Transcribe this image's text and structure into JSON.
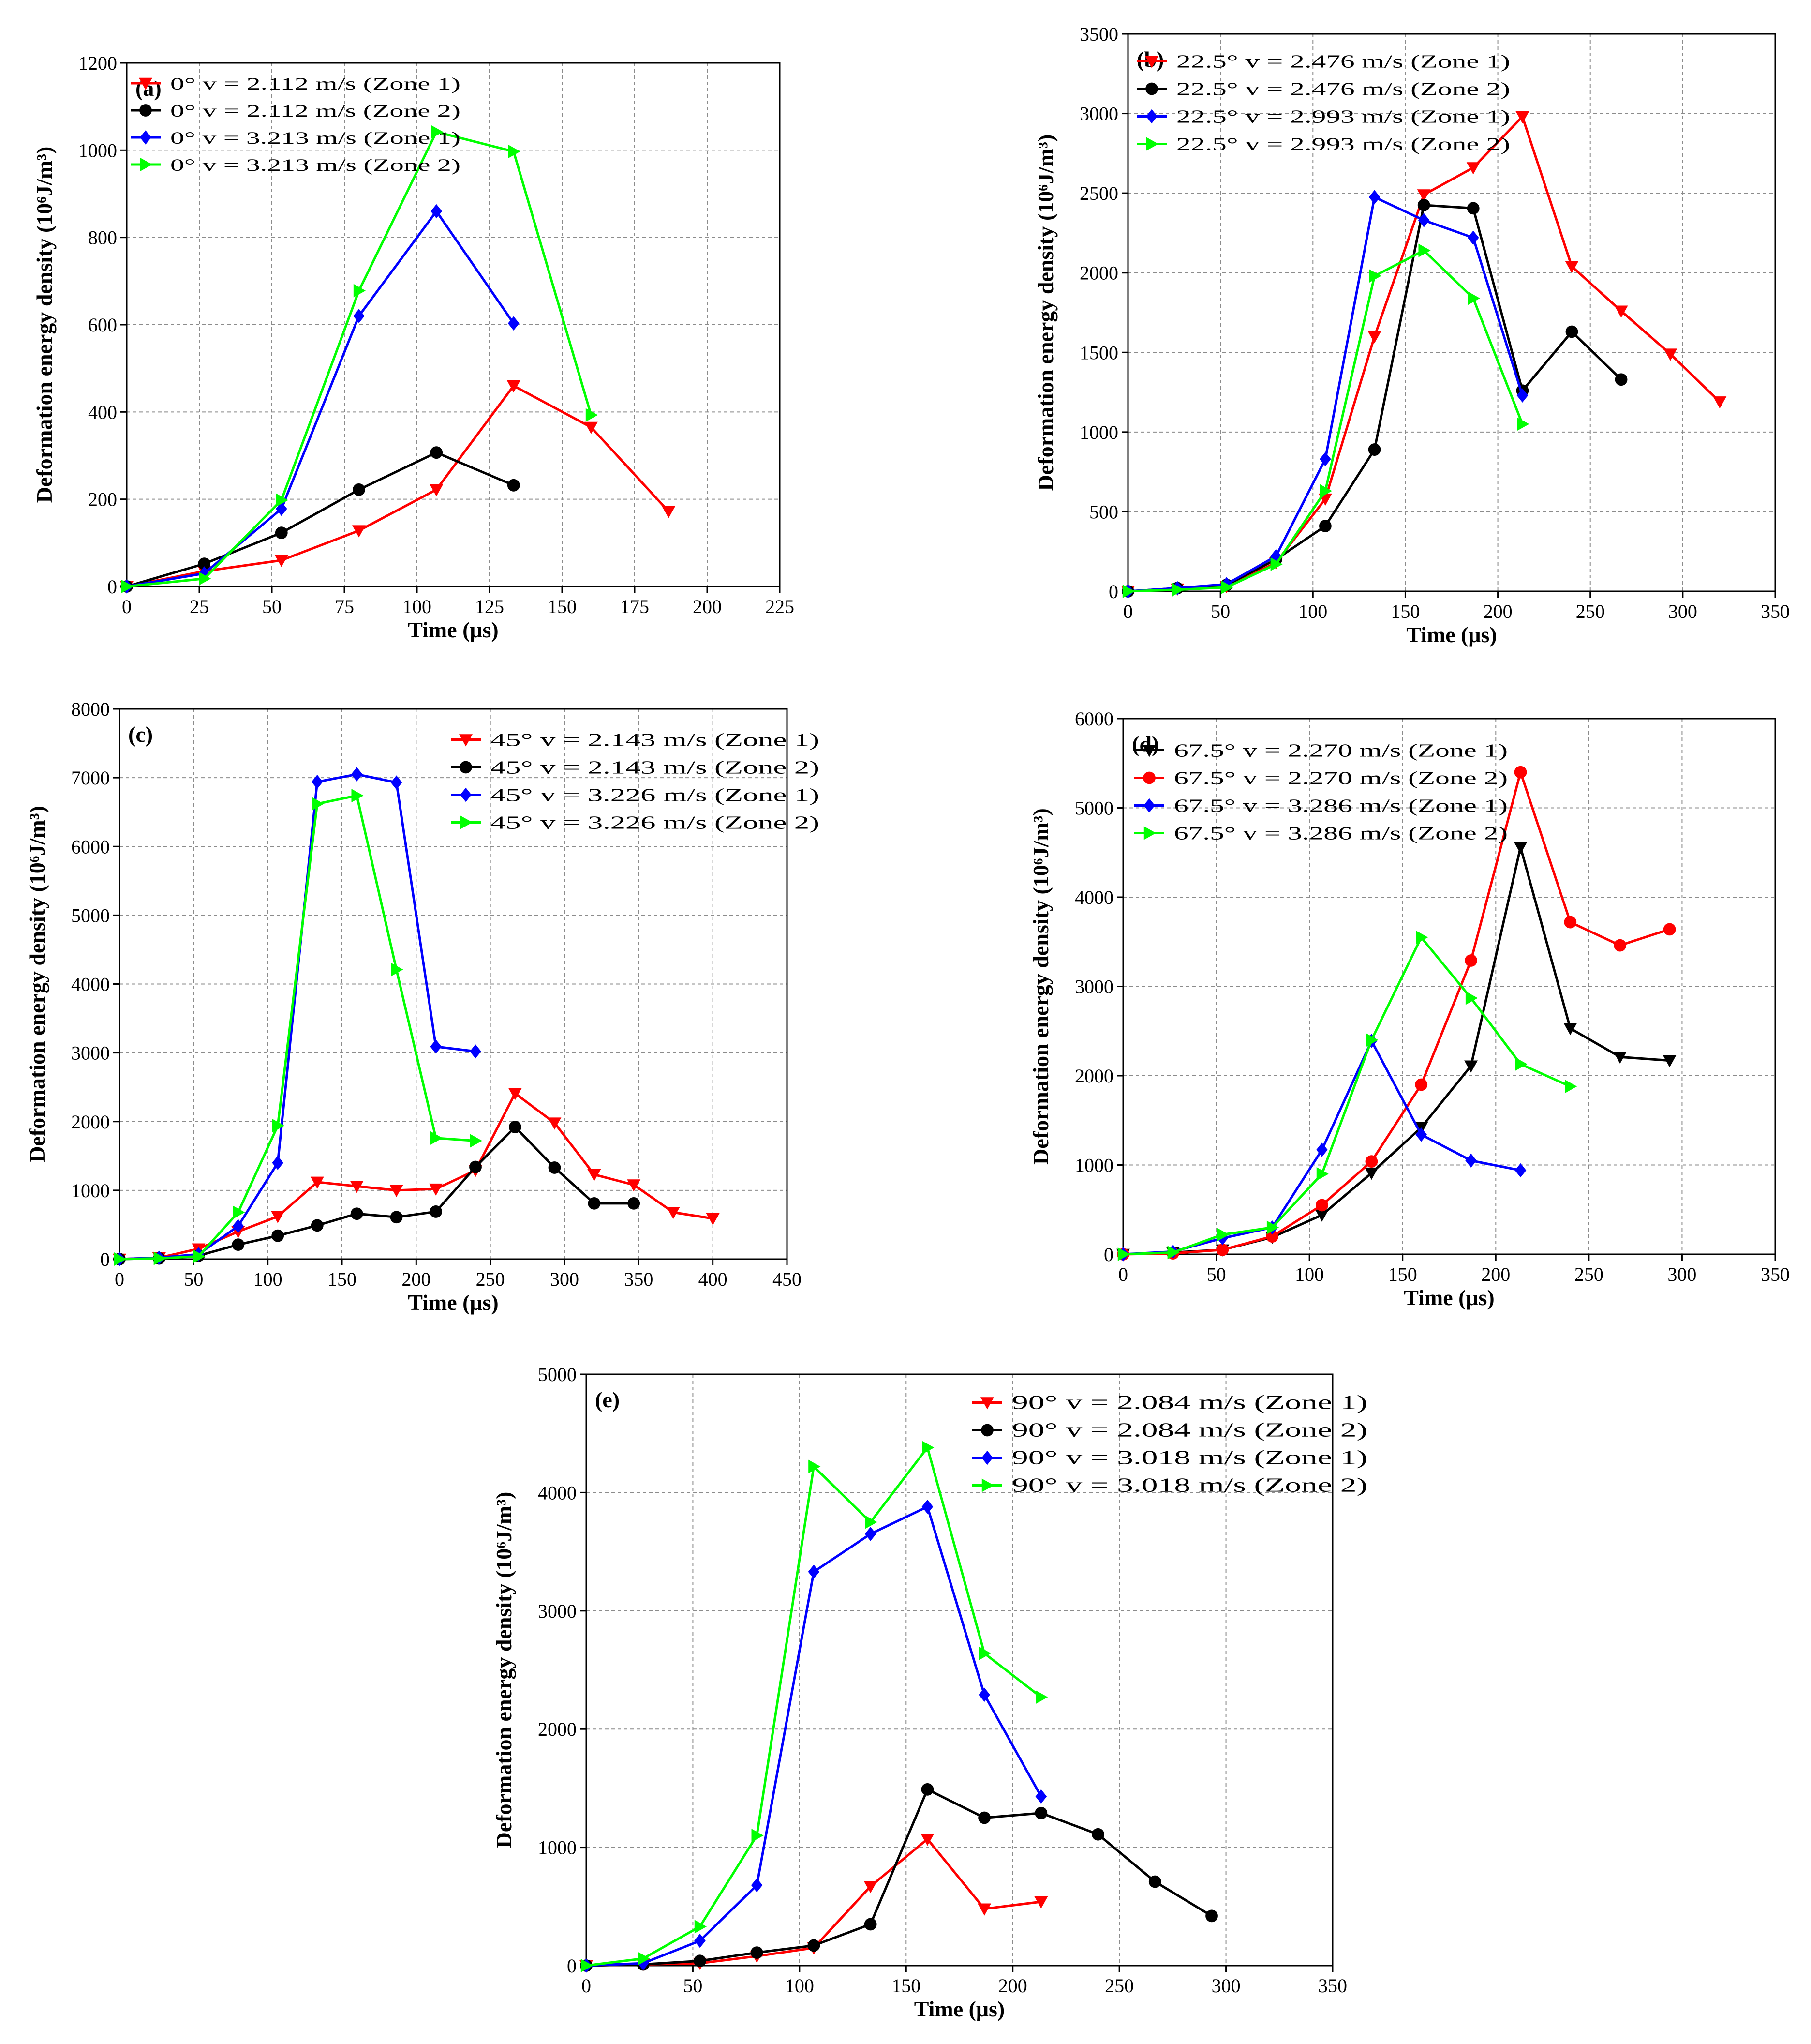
{
  "chart_data": [
    {
      "type": "line",
      "panel_label": "(a)",
      "xlabel": "Time (μs)",
      "ylabel": "Deformation energy density (10⁶J/m³)",
      "xlim": [
        0,
        225
      ],
      "ylim": [
        0,
        1200
      ],
      "xticks": [
        0,
        25,
        50,
        75,
        100,
        125,
        150,
        175,
        200,
        225
      ],
      "yticks": [
        0,
        200,
        400,
        600,
        800,
        1000,
        1200
      ],
      "legend_position": "top-left",
      "series": [
        {
          "name": "0° v = 2.112 m/s  (Zone 1)",
          "angle": "0°",
          "speed": "v = 2.112 m/s",
          "zone": "(Zone 1)",
          "color": "#ff0000",
          "marker": "triangle-down",
          "x": [
            0,
            26.7,
            53.3,
            80,
            106.7,
            133.3,
            160,
            186.7
          ],
          "y": [
            0,
            35,
            60,
            128,
            222,
            460,
            365,
            172
          ]
        },
        {
          "name": "0° v = 2.112 m/s  (Zone 2)",
          "angle": "0°",
          "speed": "v = 2.112 m/s",
          "zone": "(Zone 2)",
          "color": "#000000",
          "marker": "circle",
          "x": [
            0,
            26.7,
            53.3,
            80,
            106.7,
            133.3
          ],
          "y": [
            0,
            52,
            123,
            222,
            307,
            232
          ]
        },
        {
          "name": "0° v = 3.213 m/s  (Zone 1)",
          "angle": "0°",
          "speed": "v = 3.213 m/s",
          "zone": "(Zone 1)",
          "color": "#0000ff",
          "marker": "diamond",
          "x": [
            0,
            26.7,
            53.3,
            80,
            106.7,
            133.3
          ],
          "y": [
            0,
            30,
            178,
            620,
            860,
            603
          ]
        },
        {
          "name": "0° v = 3.213 m/s  (Zone 2)",
          "angle": "0°",
          "speed": "v = 3.213 m/s",
          "zone": "(Zone 2)",
          "color": "#00ff00",
          "marker": "triangle-right",
          "x": [
            0,
            26.7,
            53.3,
            80,
            106.7,
            133.3,
            160
          ],
          "y": [
            0,
            18,
            198,
            678,
            1042,
            997,
            393
          ]
        }
      ]
    },
    {
      "type": "line",
      "panel_label": "(b)",
      "xlabel": "Time (μs)",
      "ylabel": "Deformation energy density (10⁶J/m³)",
      "xlim": [
        0,
        350
      ],
      "ylim": [
        0,
        3500
      ],
      "xticks": [
        0,
        50,
        100,
        150,
        200,
        250,
        300,
        350
      ],
      "yticks": [
        0,
        500,
        1000,
        1500,
        2000,
        2500,
        3000,
        3500
      ],
      "legend_position": "top-left",
      "series": [
        {
          "name": "22.5° v = 2.476 m/s  (Zone 1)",
          "angle": "22.5°",
          "speed": "v = 2.476 m/s",
          "zone": "(Zone 1)",
          "color": "#ff0000",
          "marker": "triangle-down",
          "x": [
            0,
            26.7,
            53.3,
            80,
            106.7,
            133.3,
            160,
            186.7,
            213.3,
            240,
            266.7,
            293.3,
            320
          ],
          "y": [
            0,
            15,
            30,
            180,
            580,
            1600,
            2490,
            2660,
            2980,
            2040,
            1760,
            1490,
            1190
          ]
        },
        {
          "name": "22.5° v = 2.476 m/s  (Zone 2)",
          "angle": "22.5°",
          "speed": "v = 2.476 m/s",
          "zone": "(Zone 2)",
          "color": "#000000",
          "marker": "circle",
          "x": [
            0,
            26.7,
            53.3,
            80,
            106.7,
            133.3,
            160,
            186.7,
            213.3,
            240,
            266.7
          ],
          "y": [
            0,
            20,
            40,
            200,
            410,
            890,
            2425,
            2405,
            1260,
            1630,
            1330
          ]
        },
        {
          "name": "22.5° v = 2.993 m/s  (Zone 1)",
          "angle": "22.5°",
          "speed": "v = 2.993 m/s",
          "zone": "(Zone 1)",
          "color": "#0000ff",
          "marker": "diamond",
          "x": [
            0,
            26.7,
            53.3,
            80,
            106.7,
            133.3,
            160,
            186.7,
            213.3
          ],
          "y": [
            0,
            20,
            45,
            220,
            830,
            2475,
            2330,
            2220,
            1230
          ]
        },
        {
          "name": "22.5° v = 2.993 m/s  (Zone 2)",
          "angle": "22.5°",
          "speed": "v = 2.993 m/s",
          "zone": "(Zone 2)",
          "color": "#00ff00",
          "marker": "triangle-right",
          "x": [
            0,
            26.7,
            53.3,
            80,
            106.7,
            133.3,
            160,
            186.7,
            213.3
          ],
          "y": [
            0,
            10,
            25,
            170,
            630,
            1980,
            2140,
            1840,
            1050
          ]
        }
      ]
    },
    {
      "type": "line",
      "panel_label": "(c)",
      "xlabel": "Time (μs)",
      "ylabel": "Deformation energy density (10⁶J/m³)",
      "xlim": [
        0,
        450
      ],
      "ylim": [
        0,
        8000
      ],
      "xticks": [
        0,
        50,
        100,
        150,
        200,
        250,
        300,
        350,
        400,
        450
      ],
      "yticks": [
        0,
        1000,
        2000,
        3000,
        4000,
        5000,
        6000,
        7000,
        8000
      ],
      "legend_position": "top-right",
      "series": [
        {
          "name": "45° v = 2.143 m/s  (Zone 1)",
          "angle": "45°",
          "speed": "v = 2.143 m/s",
          "zone": "(Zone 1)",
          "color": "#ff0000",
          "marker": "triangle-down",
          "x": [
            0,
            26.7,
            53.3,
            80,
            106.7,
            133.3,
            160,
            186.7,
            213.3,
            240,
            266.7,
            293.3,
            320,
            346.7,
            373.3,
            400
          ],
          "y": [
            0,
            20,
            150,
            400,
            620,
            1120,
            1060,
            1000,
            1020,
            1290,
            2410,
            1980,
            1230,
            1080,
            680,
            590
          ]
        },
        {
          "name": "45° v = 2.143 m/s  (Zone 2)",
          "angle": "45°",
          "speed": "v = 2.143 m/s",
          "zone": "(Zone 2)",
          "color": "#000000",
          "marker": "circle",
          "x": [
            0,
            26.7,
            53.3,
            80,
            106.7,
            133.3,
            160,
            186.7,
            213.3,
            240,
            266.7,
            293.3,
            320,
            346.7
          ],
          "y": [
            0,
            10,
            50,
            210,
            340,
            490,
            660,
            610,
            690,
            1340,
            1920,
            1330,
            810,
            810
          ]
        },
        {
          "name": "45° v = 3.226 m/s  (Zone 1)",
          "angle": "45°",
          "speed": "v = 3.226 m/s",
          "zone": "(Zone 1)",
          "color": "#0000ff",
          "marker": "diamond",
          "x": [
            0,
            26.7,
            53.3,
            80,
            106.7,
            133.3,
            160,
            186.7,
            213.3,
            240
          ],
          "y": [
            0,
            20,
            70,
            480,
            1400,
            6940,
            7050,
            6930,
            3090,
            3020
          ]
        },
        {
          "name": "45° v = 3.226 m/s  (Zone 2)",
          "angle": "45°",
          "speed": "v = 3.226 m/s",
          "zone": "(Zone 2)",
          "color": "#00ff00",
          "marker": "triangle-right",
          "x": [
            0,
            26.7,
            53.3,
            80,
            106.7,
            133.3,
            160,
            186.7,
            213.3,
            240
          ],
          "y": [
            0,
            10,
            40,
            680,
            1940,
            6620,
            6740,
            4210,
            1760,
            1720
          ]
        }
      ]
    },
    {
      "type": "line",
      "panel_label": "(d)",
      "xlabel": "Time (μs)",
      "ylabel": "Deformation energy density (10⁶J/m³)",
      "xlim": [
        0,
        350
      ],
      "ylim": [
        0,
        6000
      ],
      "xticks": [
        0,
        50,
        100,
        150,
        200,
        250,
        300,
        350
      ],
      "yticks": [
        0,
        1000,
        2000,
        3000,
        4000,
        5000,
        6000
      ],
      "legend_position": "top-left",
      "series": [
        {
          "name": "67.5° v = 2.270 m/s  (Zone 1)",
          "angle": "67.5°",
          "speed": "v = 2.270 m/s",
          "zone": "(Zone 1)",
          "color": "#000000",
          "marker": "triangle-down",
          "x": [
            0,
            26.7,
            53.3,
            80,
            106.7,
            133.3,
            160,
            186.7,
            213.3,
            240,
            266.7,
            293.3
          ],
          "y": [
            0,
            20,
            50,
            190,
            440,
            910,
            1420,
            2110,
            4560,
            2530,
            2210,
            2170
          ]
        },
        {
          "name": "67.5° v = 2.270 m/s  (Zone 2)",
          "angle": "67.5°",
          "speed": "v = 2.270 m/s",
          "zone": "(Zone 2)",
          "color": "#ff0000",
          "marker": "circle",
          "x": [
            0,
            26.7,
            53.3,
            80,
            106.7,
            133.3,
            160,
            186.7,
            213.3,
            240,
            266.7,
            293.3
          ],
          "y": [
            0,
            10,
            50,
            200,
            550,
            1040,
            1900,
            3290,
            5400,
            3720,
            3460,
            3640
          ]
        },
        {
          "name": "67.5° v = 3.286 m/s  (Zone 1)",
          "angle": "67.5°",
          "speed": "v = 3.286 m/s",
          "zone": "(Zone 1)",
          "color": "#0000ff",
          "marker": "diamond",
          "x": [
            0,
            26.7,
            53.3,
            80,
            106.7,
            133.3,
            160,
            186.7,
            213.3
          ],
          "y": [
            0,
            30,
            180,
            300,
            1170,
            2390,
            1340,
            1050,
            940
          ]
        },
        {
          "name": "67.5° v = 3.286 m/s  (Zone 2)",
          "angle": "67.5°",
          "speed": "v = 3.286 m/s",
          "zone": "(Zone 2)",
          "color": "#00ff00",
          "marker": "triangle-right",
          "x": [
            0,
            26.7,
            53.3,
            80,
            106.7,
            133.3,
            160,
            186.7,
            213.3,
            240
          ],
          "y": [
            0,
            20,
            220,
            300,
            900,
            2400,
            3550,
            2870,
            2130,
            1880
          ]
        }
      ]
    },
    {
      "type": "line",
      "panel_label": "(e)",
      "xlabel": "Time (μs)",
      "ylabel": "Deformation energy density (10⁶J/m³)",
      "xlim": [
        0,
        350
      ],
      "ylim": [
        0,
        5000
      ],
      "xticks": [
        0,
        50,
        100,
        150,
        200,
        250,
        300,
        350
      ],
      "yticks": [
        0,
        1000,
        2000,
        3000,
        4000,
        5000
      ],
      "legend_position": "top-right",
      "series": [
        {
          "name": "90° v = 2.084 m/s  (Zone 1)",
          "angle": "90°",
          "speed": "v = 2.084 m/s",
          "zone": "(Zone 1)",
          "color": "#ff0000",
          "marker": "triangle-down",
          "x": [
            0,
            26.7,
            53.3,
            80,
            106.7,
            133.3,
            160,
            186.7,
            213.3
          ],
          "y": [
            0,
            10,
            20,
            80,
            150,
            670,
            1070,
            480,
            540
          ]
        },
        {
          "name": "90° v = 2.084 m/s  (Zone 2)",
          "angle": "90°",
          "speed": "v = 2.084 m/s",
          "zone": "(Zone 2)",
          "color": "#000000",
          "marker": "circle",
          "x": [
            0,
            26.7,
            53.3,
            80,
            106.7,
            133.3,
            160,
            186.7,
            213.3,
            240,
            266.7,
            293.3
          ],
          "y": [
            0,
            10,
            40,
            110,
            170,
            350,
            1490,
            1250,
            1290,
            1110,
            710,
            420
          ]
        },
        {
          "name": "90° v = 3.018 m/s  (Zone 1)",
          "angle": "90°",
          "speed": "v = 3.018 m/s",
          "zone": "(Zone 1)",
          "color": "#0000ff",
          "marker": "diamond",
          "x": [
            0,
            26.7,
            53.3,
            80,
            106.7,
            133.3,
            160,
            186.7,
            213.3
          ],
          "y": [
            0,
            20,
            210,
            680,
            3330,
            3650,
            3880,
            2290,
            1430
          ]
        },
        {
          "name": "90° v = 3.018 m/s  (Zone 2)",
          "angle": "90°",
          "speed": "v = 3.018 m/s",
          "zone": "(Zone 2)",
          "color": "#00ff00",
          "marker": "triangle-right",
          "x": [
            0,
            26.7,
            53.3,
            80,
            106.7,
            133.3,
            160,
            186.7,
            213.3
          ],
          "y": [
            0,
            60,
            330,
            1100,
            4220,
            3750,
            4380,
            2640,
            2270
          ]
        }
      ]
    }
  ]
}
